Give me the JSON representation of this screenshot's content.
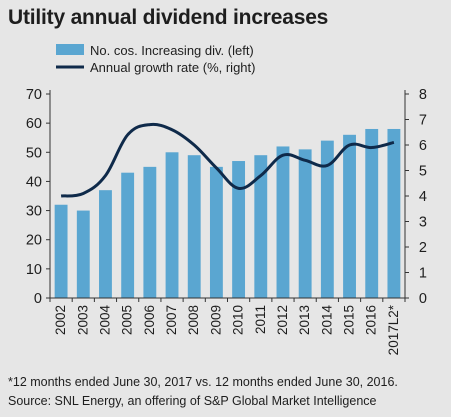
{
  "title": "Utility annual dividend increases",
  "footnote": "*12 months ended June 30, 2017 vs. 12 months ended June 30, 2016.",
  "source": "Source: SNL Energy, an offering of S&P Global Market Intelligence",
  "colors": {
    "bar": "#5aa6d1",
    "line": "#0f2a4a",
    "background": "#e6e6e6",
    "axis": "#333333"
  },
  "chart_data": {
    "type": "bar",
    "categories": [
      "2002",
      "2003",
      "2004",
      "2005",
      "2006",
      "2007",
      "2008",
      "2009",
      "2010",
      "2011",
      "2012",
      "2013",
      "2014",
      "2015",
      "2016",
      "2017L2*"
    ],
    "series": [
      {
        "name": "No. cos. Increasing div. (left)",
        "type": "bar",
        "axis": "left",
        "values": [
          32,
          30,
          37,
          43,
          45,
          50,
          49,
          45,
          47,
          49,
          52,
          51,
          54,
          56,
          58,
          58
        ]
      },
      {
        "name": "Annual growth rate (%, right)",
        "type": "line",
        "axis": "right",
        "values": [
          4.0,
          4.1,
          4.8,
          6.4,
          6.8,
          6.6,
          6.0,
          5.1,
          4.3,
          4.8,
          5.6,
          5.4,
          5.2,
          6.0,
          5.9,
          6.1
        ]
      }
    ],
    "yleft": {
      "min": 0,
      "max": 70,
      "ticks": [
        0,
        10,
        20,
        30,
        40,
        50,
        60,
        70
      ]
    },
    "yright": {
      "min": 0,
      "max": 8,
      "ticks": [
        0,
        1,
        2,
        3,
        4,
        5,
        6,
        7,
        8
      ]
    },
    "legend_position": "top-left",
    "grid": false
  }
}
